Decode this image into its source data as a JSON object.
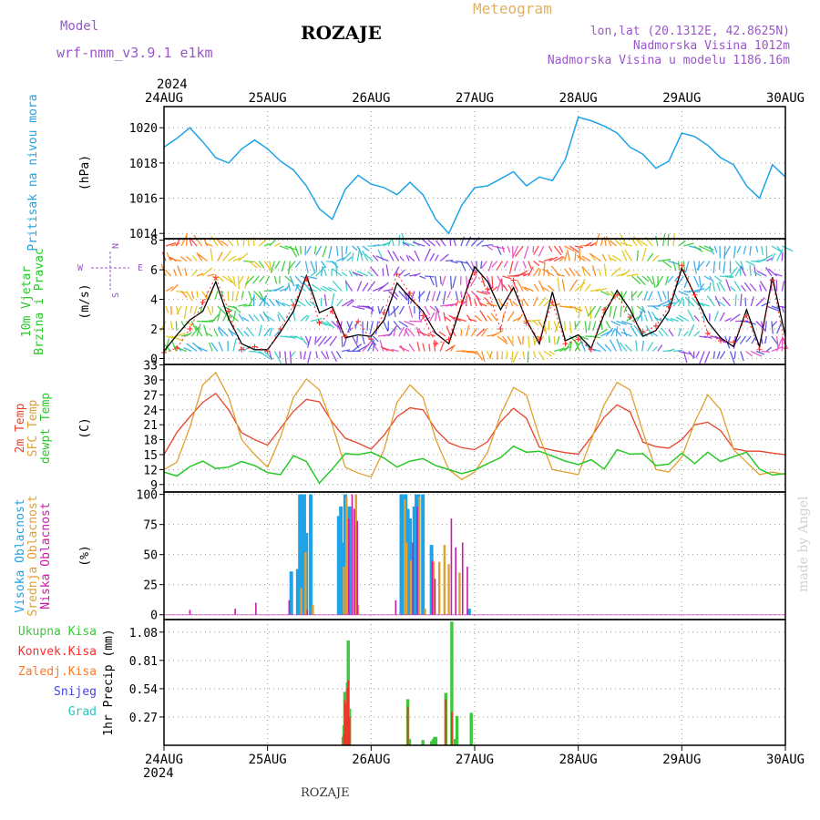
{
  "header": {
    "model_label": "Model",
    "model_version": "wrf-nmm_v3.9.1 e1km",
    "location": "ROZAJE",
    "product": "Meteogram",
    "coords": "lon,lat (20.1312E, 42.8625N)",
    "elevation": "Nadmorska Visina 1012m",
    "model_elevation": "Nadmorska Visina u modelu 1186.16m",
    "credit": "made by Angel",
    "footer": "ROZAJE"
  },
  "time_axis": {
    "year": "2024",
    "days": [
      "24AUG",
      "25AUG",
      "26AUG",
      "27AUG",
      "28AUG",
      "29AUG",
      "30AUG"
    ]
  },
  "colors": {
    "pressure": "#1fa3e6",
    "wind_speed": "#000000",
    "wind_gust": "#ff2a2a",
    "temp2m": "#e8442c",
    "sfc_temp": "#e0a030",
    "dewpt": "#28c828",
    "cloud_high": "#1fa3e6",
    "cloud_mid": "#e0a030",
    "cloud_low": "#cc1aa6",
    "precip_total": "#3cc83c",
    "precip_conv": "#ff2a2a",
    "precip_frz": "#ff7a2a",
    "precip_snow": "#4444dd",
    "precip_hail": "#22c8c0"
  },
  "chart_data": [
    {
      "id": "pressure",
      "type": "line",
      "ylabel": "(hPa)",
      "title_lines": [
        "Pritisak na nivou mora"
      ],
      "ylim": [
        1013.7,
        1021.2
      ],
      "yticks": [
        1014,
        1016,
        1018,
        1020
      ],
      "grid": true,
      "x": [
        0,
        3,
        6,
        9,
        12,
        15,
        18,
        21,
        24,
        27,
        30,
        33,
        36,
        39,
        42,
        45,
        48,
        51,
        54,
        57,
        60,
        63,
        66,
        69,
        72,
        75,
        78,
        81,
        84,
        87,
        90,
        93,
        96,
        99,
        102,
        105,
        108,
        111,
        114,
        117,
        120,
        123,
        126,
        129,
        132,
        135,
        138,
        141,
        144
      ],
      "series": [
        {
          "name": "",
          "values": [
            1018.9,
            1019.4,
            1020.0,
            1019.2,
            1018.3,
            1018.0,
            1018.8,
            1019.3,
            1018.8,
            1018.1,
            1017.6,
            1016.7,
            1015.4,
            1014.8,
            1016.5,
            1017.3,
            1016.8,
            1016.6,
            1016.2,
            1016.9,
            1016.2,
            1014.8,
            1014.0,
            1015.6,
            1016.6,
            1016.7,
            1017.1,
            1017.5,
            1016.7,
            1017.2,
            1017.0,
            1018.2,
            1020.6,
            1020.4,
            1020.1,
            1019.7,
            1018.9,
            1018.5,
            1017.7,
            1018.1,
            1019.7,
            1019.5,
            1019.0,
            1018.3,
            1017.9,
            1016.7,
            1016.0,
            1017.9,
            1017.2
          ]
        }
      ]
    },
    {
      "id": "wind",
      "type": "line",
      "ylabel": "(m/s)",
      "title_lines": [
        "10m Vjetar",
        "Brzina i Pravac"
      ],
      "ylim": [
        -0.4,
        8.1
      ],
      "yticks": [
        0,
        2,
        4,
        6,
        8
      ],
      "grid": true,
      "compass": {
        "n": "N",
        "s": "S",
        "e": "E",
        "w": "W"
      },
      "x": [
        0,
        3,
        6,
        9,
        12,
        15,
        18,
        21,
        24,
        27,
        30,
        33,
        36,
        39,
        42,
        45,
        48,
        51,
        54,
        57,
        60,
        63,
        66,
        69,
        72,
        75,
        78,
        81,
        84,
        87,
        90,
        93,
        96,
        99,
        102,
        105,
        108,
        111,
        114,
        117,
        120,
        123,
        126,
        129,
        132,
        135,
        138,
        141,
        144
      ],
      "series": [
        {
          "name": "",
          "values": [
            0.5,
            1.6,
            2.6,
            3.2,
            5.2,
            2.7,
            1.0,
            0.6,
            0.6,
            1.8,
            3.2,
            5.6,
            3.1,
            3.5,
            1.4,
            1.6,
            1.5,
            2.6,
            5.1,
            4.1,
            3.2,
            1.7,
            1.0,
            3.7,
            6.2,
            5.2,
            3.3,
            4.8,
            2.6,
            1.0,
            4.5,
            1.2,
            1.6,
            0.7,
            3.0,
            4.6,
            3.3,
            1.5,
            1.9,
            3.2,
            6.1,
            4.3,
            2.5,
            1.4,
            0.8,
            3.3,
            0.8,
            5.5,
            1.5
          ]
        },
        {
          "name": "",
          "values": [
            0.4,
            0.7,
            2.0,
            3.8,
            5.5,
            3.2,
            0.6,
            0.8,
            0.5,
            2.0,
            3.6,
            5.4,
            2.4,
            3.2,
            1.5,
            2.5,
            1.3,
            3.1,
            5.7,
            4.4,
            2.9,
            1.0,
            1.3,
            3.8,
            5.8,
            4.7,
            2.0,
            5.3,
            2.4,
            1.3,
            3.8,
            1.0,
            1.3,
            0.6,
            3.3,
            4.3,
            2.8,
            1.8,
            2.2,
            3.5,
            6.3,
            4.3,
            1.7,
            1.2,
            1.1,
            2.9,
            0.6,
            5.3,
            0.7
          ]
        }
      ]
    },
    {
      "id": "temperature",
      "type": "line",
      "ylabel": "(C)",
      "title_lines": [
        "2m Temp",
        "SFC Temp",
        "dewpt Temp"
      ],
      "ylim": [
        7.5,
        33.1
      ],
      "yticks": [
        9,
        12,
        15,
        18,
        21,
        24,
        27,
        30,
        33
      ],
      "grid": true,
      "x": [
        0,
        3,
        6,
        9,
        12,
        15,
        18,
        21,
        24,
        27,
        30,
        33,
        36,
        39,
        42,
        45,
        48,
        51,
        54,
        57,
        60,
        63,
        66,
        69,
        72,
        75,
        78,
        81,
        84,
        87,
        90,
        93,
        96,
        99,
        102,
        105,
        108,
        111,
        114,
        117,
        120,
        123,
        126,
        129,
        132,
        135,
        138,
        141,
        144
      ],
      "series": [
        {
          "name": "",
          "values": [
            15.0,
            19.5,
            22.6,
            25.5,
            27.3,
            24.0,
            19.4,
            18.0,
            16.9,
            20.3,
            23.7,
            26.1,
            25.6,
            21.5,
            18.3,
            17.3,
            16.1,
            18.9,
            22.6,
            24.4,
            24.0,
            20.0,
            17.4,
            16.4,
            16.0,
            17.6,
            21.6,
            24.3,
            22.3,
            16.5,
            15.9,
            15.4,
            15.1,
            18.5,
            22.5,
            25.0,
            23.6,
            17.5,
            16.6,
            16.3,
            18.0,
            21.0,
            21.5,
            19.8,
            16.2,
            15.7,
            15.7,
            15.3,
            15.0
          ]
        },
        {
          "name": "",
          "values": [
            12.0,
            13.5,
            20.5,
            29.0,
            31.5,
            26.5,
            18.0,
            15.0,
            12.5,
            18.5,
            26.5,
            30.2,
            28.0,
            21.0,
            12.5,
            11.3,
            10.5,
            16.0,
            25.5,
            29.0,
            26.5,
            18.0,
            12.0,
            10.0,
            11.5,
            15.5,
            23.0,
            28.5,
            27.0,
            18.5,
            12.0,
            11.5,
            11.0,
            18.0,
            25.0,
            29.5,
            28.0,
            19.5,
            12.0,
            11.5,
            14.5,
            21.5,
            27.0,
            24.0,
            16.0,
            13.5,
            11.0,
            11.5,
            11.0
          ]
        },
        {
          "name": "",
          "values": [
            11.5,
            10.7,
            12.6,
            13.7,
            12.2,
            12.5,
            13.6,
            12.8,
            11.4,
            11.0,
            14.8,
            13.6,
            9.3,
            12.1,
            15.2,
            15.0,
            15.5,
            14.3,
            12.5,
            13.7,
            14.2,
            12.8,
            12.0,
            11.2,
            11.9,
            13.2,
            14.4,
            16.7,
            15.5,
            15.7,
            14.7,
            13.7,
            13.0,
            14.0,
            12.1,
            16.0,
            15.1,
            15.2,
            12.8,
            13.1,
            15.3,
            13.2,
            15.5,
            13.6,
            14.6,
            15.5,
            12.1,
            10.9,
            11.2
          ]
        }
      ]
    },
    {
      "id": "clouds",
      "type": "bar",
      "ylabel": "(%)",
      "title_lines": [
        "Visoka Oblacnost",
        "Srednja Oblacnost",
        "Niska Oblacnost"
      ],
      "ylim": [
        -4,
        102
      ],
      "yticks": [
        0,
        25,
        50,
        75,
        100
      ],
      "grid": true,
      "series": [
        {
          "name": "",
          "points": [
            [
              29.5,
              36
            ],
            [
              31,
              38
            ],
            [
              31.5,
              100
            ],
            [
              32,
              100
            ],
            [
              32.5,
              100
            ],
            [
              33,
              68
            ],
            [
              34,
              100
            ],
            [
              40.5,
              82
            ],
            [
              41,
              90
            ],
            [
              41.5,
              60
            ],
            [
              42,
              100
            ],
            [
              43,
              90
            ],
            [
              55,
              100
            ],
            [
              55.5,
              100
            ],
            [
              56,
              100
            ],
            [
              56.5,
              88
            ],
            [
              57,
              80
            ],
            [
              57.5,
              60
            ],
            [
              58,
              90
            ],
            [
              58.5,
              100
            ],
            [
              59,
              100
            ],
            [
              60,
              100
            ],
            [
              62,
              58
            ],
            [
              70.7,
              5
            ]
          ]
        },
        {
          "name": "",
          "points": [
            [
              31.8,
              22
            ],
            [
              32.8,
              52
            ],
            [
              34.5,
              8
            ],
            [
              41.7,
              40
            ],
            [
              42.3,
              98
            ],
            [
              44.5,
              100
            ],
            [
              45,
              8
            ],
            [
              55.8,
              96
            ],
            [
              56.2,
              60
            ],
            [
              57.2,
              45
            ],
            [
              59.2,
              98
            ],
            [
              60.5,
              5
            ],
            [
              62.5,
              44
            ],
            [
              63.8,
              44
            ],
            [
              65,
              58
            ],
            [
              66,
              42
            ],
            [
              68.5,
              35
            ]
          ]
        },
        {
          "name": "",
          "points": [
            [
              6,
              4
            ],
            [
              16.5,
              5
            ],
            [
              21.3,
              10
            ],
            [
              29,
              12
            ],
            [
              33.2,
              4
            ],
            [
              42.8,
              80
            ],
            [
              43.6,
              100
            ],
            [
              44.1,
              88
            ],
            [
              44.8,
              78
            ],
            [
              53.7,
              12
            ],
            [
              57.7,
              60
            ],
            [
              58.7,
              90
            ],
            [
              62.2,
              45
            ],
            [
              62.8,
              30
            ],
            [
              66.6,
              80
            ],
            [
              67.6,
              56
            ],
            [
              69.2,
              60
            ],
            [
              70.3,
              40
            ]
          ]
        }
      ]
    },
    {
      "id": "precip",
      "type": "bar",
      "ylabel": "1hr Precip (mm)",
      "title_lines": [
        "Ukupna Kisa",
        "Konvek.Kisa",
        "Zaledj.Kisa",
        "Snijeg",
        "Grad"
      ],
      "ylim": [
        0,
        1.2
      ],
      "yticks": [
        0.27,
        0.54,
        0.81,
        1.08
      ],
      "grid": true,
      "series": [
        {
          "name": "",
          "points": [
            [
              41.5,
              0.08
            ],
            [
              41.7,
              0.19
            ],
            [
              41.9,
              0.51
            ],
            [
              42.1,
              0.46
            ],
            [
              42.3,
              0.42
            ],
            [
              42.5,
              0.6
            ],
            [
              42.7,
              1.0
            ],
            [
              43.0,
              0.35
            ],
            [
              56.5,
              0.44
            ],
            [
              56.9,
              0.06
            ],
            [
              60.0,
              0.05
            ],
            [
              62.0,
              0.04
            ],
            [
              62.4,
              0.06
            ],
            [
              62.7,
              0.08
            ],
            [
              63.0,
              0.08
            ],
            [
              65.3,
              0.5
            ],
            [
              66.7,
              1.18
            ],
            [
              67.5,
              0.06
            ],
            [
              67.9,
              0.28
            ],
            [
              71.2,
              0.31
            ]
          ]
        },
        {
          "name": "",
          "points": [
            [
              41.7,
              0.1
            ],
            [
              41.9,
              0.43
            ],
            [
              42.1,
              0.39
            ],
            [
              42.5,
              0.55
            ],
            [
              42.7,
              0.62
            ],
            [
              43.0,
              0.27
            ],
            [
              56.5,
              0.37
            ],
            [
              65.3,
              0.44
            ],
            [
              66.7,
              0.32
            ]
          ]
        },
        {
          "name": "",
          "points": []
        },
        {
          "name": "",
          "points": []
        },
        {
          "name": "",
          "points": []
        }
      ]
    }
  ]
}
